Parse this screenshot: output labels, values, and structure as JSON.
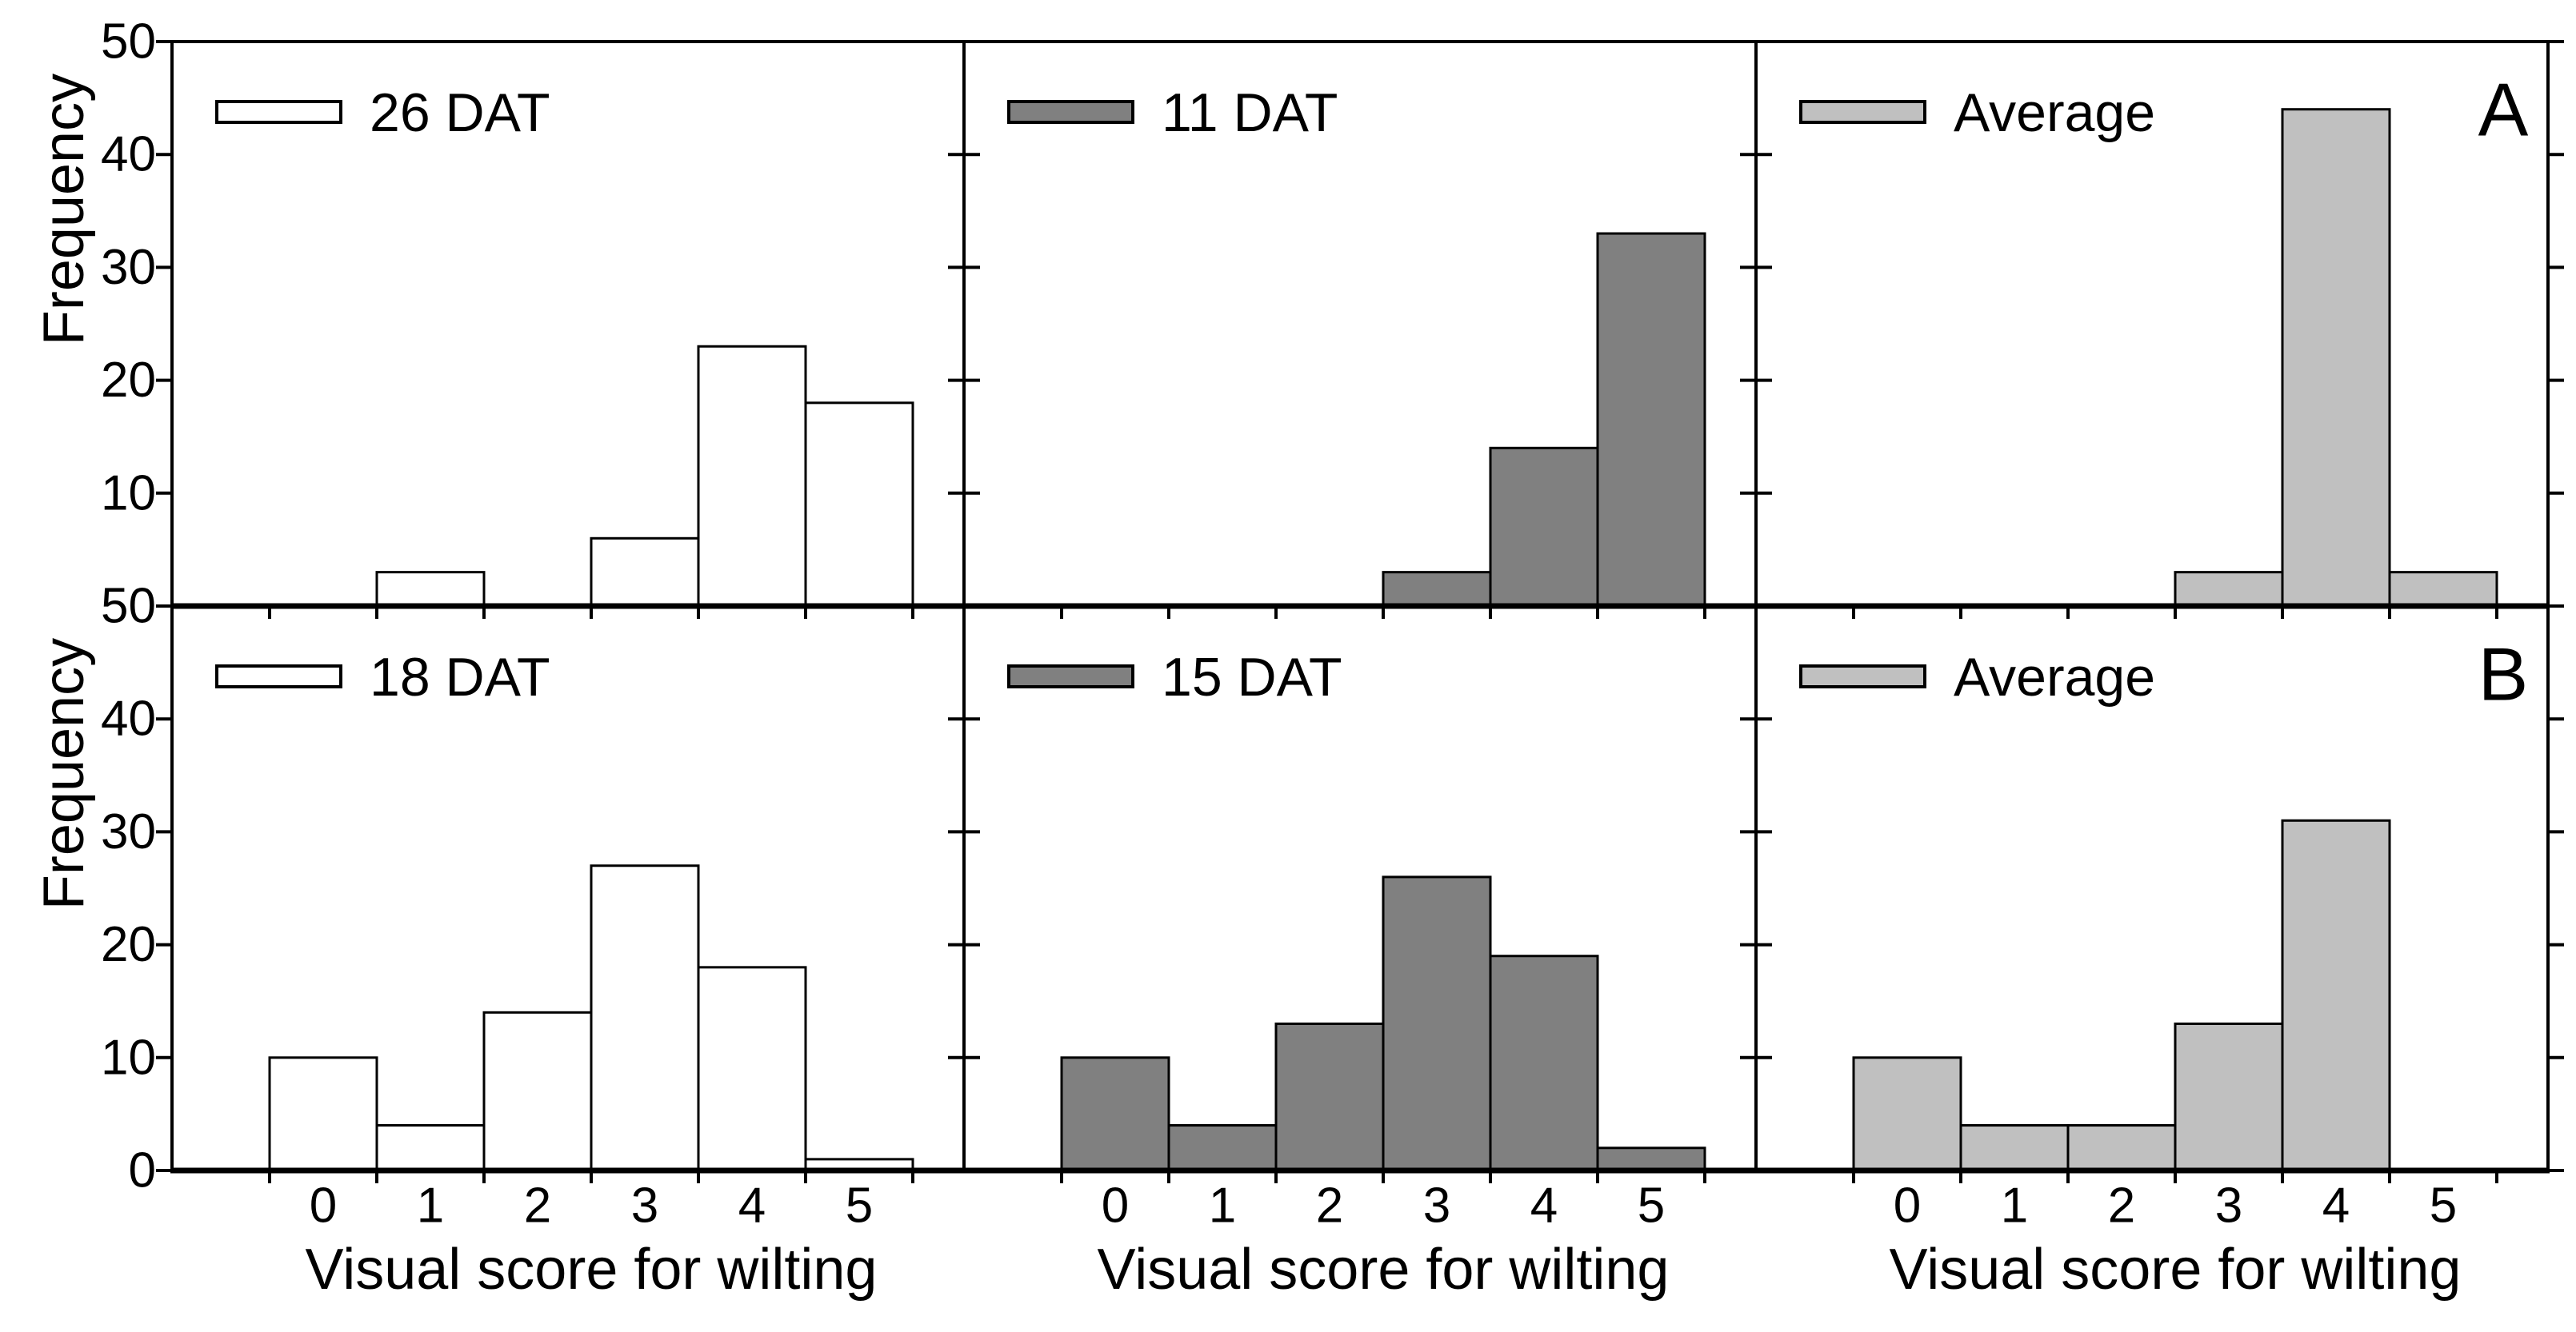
{
  "figure": {
    "background": "#ffffff",
    "text_color": "#000000"
  },
  "chart_data": {
    "type": "bar",
    "subtype": "histogram_panel_grid",
    "rows": 2,
    "cols": 3,
    "grid": false,
    "categories": [
      "0",
      "1",
      "2",
      "3",
      "4",
      "5"
    ],
    "xlabel": "Visual score for wilting",
    "ylabel": "Frequency",
    "ylim": [
      0,
      50
    ],
    "yticks": [
      0,
      10,
      20,
      30,
      40,
      50
    ],
    "row_ytick_labels": [
      [
        "50",
        "40",
        "30",
        "20",
        "10"
      ],
      [
        "50",
        "40",
        "30",
        "20",
        "10",
        "0"
      ]
    ],
    "legend_position": "top-left",
    "colors": {
      "outline": "#000000",
      "white_series": "#ffffff",
      "dark_gray_series": "#808080",
      "light_gray_series": "#c0c0c0"
    },
    "panels": [
      {
        "row": 0,
        "col": 0,
        "legend": "26 DAT",
        "fill": "#ffffff",
        "values": [
          0,
          3,
          0,
          6,
          23,
          18
        ],
        "corner_label": ""
      },
      {
        "row": 0,
        "col": 1,
        "legend": "11 DAT",
        "fill": "#808080",
        "values": [
          0,
          0,
          0,
          3,
          14,
          33
        ],
        "corner_label": ""
      },
      {
        "row": 0,
        "col": 2,
        "legend": "Average",
        "fill": "#c0c0c0",
        "values": [
          0,
          0,
          0,
          3,
          44,
          3
        ],
        "corner_label": "A"
      },
      {
        "row": 1,
        "col": 0,
        "legend": "18 DAT",
        "fill": "#ffffff",
        "values": [
          10,
          4,
          14,
          27,
          18,
          1
        ],
        "corner_label": ""
      },
      {
        "row": 1,
        "col": 1,
        "legend": "15 DAT",
        "fill": "#808080",
        "values": [
          10,
          4,
          13,
          26,
          19,
          2
        ],
        "corner_label": ""
      },
      {
        "row": 1,
        "col": 2,
        "legend": "Average",
        "fill": "#c0c0c0",
        "values": [
          10,
          4,
          4,
          13,
          31,
          0
        ],
        "corner_label": "B"
      }
    ]
  }
}
